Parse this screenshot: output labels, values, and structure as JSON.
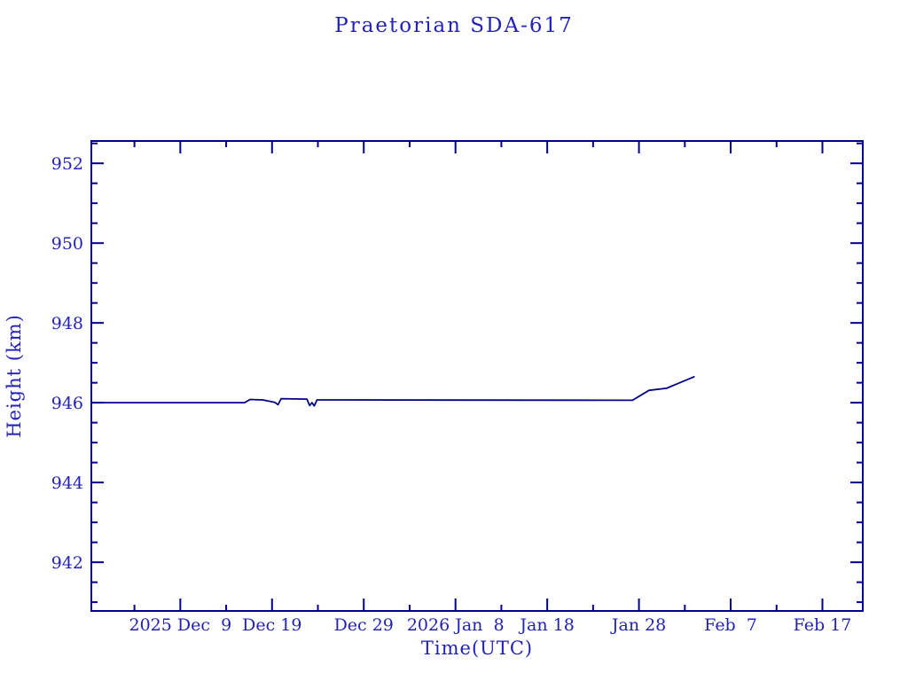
{
  "chart_data": {
    "type": "line",
    "title": "Praetorian SDA-617",
    "xlabel": "Time(UTC)",
    "ylabel": "Height (km)",
    "grid": false,
    "legend": "none",
    "colors": {
      "line": "#00008b",
      "axis": "#00008b",
      "text": "#2222bb",
      "background": "#ffffff"
    },
    "x_axis": {
      "unit": "days relative to 2025 Dec 9",
      "xlim": [
        -9.7,
        74.4
      ],
      "major_ticks": [
        {
          "day": 0,
          "label": "2025 Dec  9"
        },
        {
          "day": 10,
          "label": "Dec 19"
        },
        {
          "day": 20,
          "label": "Dec 29"
        },
        {
          "day": 30,
          "label": "2026 Jan  8"
        },
        {
          "day": 40,
          "label": "Jan 18"
        },
        {
          "day": 50,
          "label": "Jan 28"
        },
        {
          "day": 60,
          "label": "Feb  7"
        },
        {
          "day": 70,
          "label": "Feb 17"
        }
      ],
      "minor_ticks": [
        -5,
        5,
        15,
        25,
        35,
        45,
        55,
        65
      ]
    },
    "y_axis": {
      "unit": "km",
      "ylim": [
        940.78,
        952.56
      ],
      "major_ticks": [
        {
          "value": 942,
          "label": "942"
        },
        {
          "value": 944,
          "label": "944"
        },
        {
          "value": 946,
          "label": "946"
        },
        {
          "value": 948,
          "label": "948"
        },
        {
          "value": 950,
          "label": "950"
        },
        {
          "value": 952,
          "label": "952"
        }
      ],
      "minor_ticks": [
        941,
        941.5,
        942.5,
        943,
        943.5,
        944.5,
        945,
        945.5,
        946.5,
        947,
        947.5,
        948.5,
        949,
        949.5,
        950.5,
        951,
        951.5,
        952.5
      ]
    },
    "series": [
      {
        "name": "height",
        "points": [
          [
            -9.7,
            946.0
          ],
          [
            7.0,
            946.0
          ],
          [
            7.6,
            946.08
          ],
          [
            9.0,
            946.07
          ],
          [
            10.3,
            946.01
          ],
          [
            10.65,
            945.95
          ],
          [
            11.0,
            946.1
          ],
          [
            13.8,
            946.09
          ],
          [
            14.1,
            945.93
          ],
          [
            14.35,
            946.0
          ],
          [
            14.6,
            945.92
          ],
          [
            14.9,
            946.07
          ],
          [
            49.3,
            946.06
          ],
          [
            51.1,
            946.31
          ],
          [
            53.0,
            946.36
          ],
          [
            56.0,
            946.65
          ]
        ]
      }
    ]
  }
}
